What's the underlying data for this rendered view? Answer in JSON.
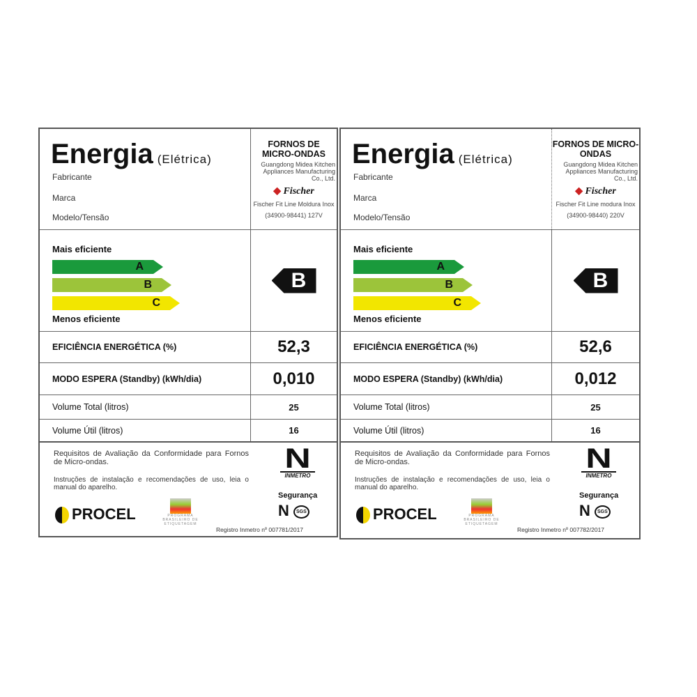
{
  "labels": [
    {
      "title": "Energia",
      "subtitle": "(Elétrica)",
      "fields": [
        "Fabricante",
        "Marca",
        "Modelo/Tensão"
      ],
      "category": "FORNOS DE MICRO-ONDAS",
      "manufacturer": "Guangdong Midea Kitchen Appliances Manufacturing Co., Ltd.",
      "brand": "Fischer",
      "model": "Fischer Fit Line Moldura Inox",
      "model_code": "(34900-98441) 127V",
      "most_efficient": "Mais eficiente",
      "least_efficient": "Menos eficiente",
      "classes": [
        "A",
        "B",
        "C"
      ],
      "rating": "B",
      "efficiency_label": "EFICIÊNCIA ENERGÉTICA (%)",
      "efficiency": "52,3",
      "standby_label": "MODO ESPERA (Standby) (kWh/dia)",
      "standby": "0,010",
      "volume_total_label": "Volume Total (litros)",
      "volume_total": "25",
      "volume_util_label": "Volume Útil (litros)",
      "volume_util": "16",
      "requirements": "Requisitos de Avaliação da Conformidade para Fornos de Micro-ondas.",
      "instructions": "Instruções de instalação e recomendações de uso, leia o manual do aparelho.",
      "procel": "PROCEL",
      "pbe": "PROGRAMA BRASILEIRO DE ETIQUETAGEM",
      "inmetro": "INMETRO",
      "safety": "Segurança",
      "sgs": "SGS",
      "registry": "Registro Inmetro nº 007781/2017"
    },
    {
      "title": "Energia",
      "subtitle": "(Elétrica)",
      "fields": [
        "Fabricante",
        "Marca",
        "Modelo/Tensão"
      ],
      "category": "FORNOS DE MICRO-ONDAS",
      "manufacturer": "Guangdong Midea Kitchen Appliances Manufacturing Co., Ltd.",
      "brand": "Fischer",
      "model": "Fischer Fit Line modura Inox",
      "model_code": "(34900-98440) 220V",
      "most_efficient": "Mais eficiente",
      "least_efficient": "Menos eficiente",
      "classes": [
        "A",
        "B",
        "C"
      ],
      "rating": "B",
      "efficiency_label": "EFICIÊNCIA ENERGÉTICA (%)",
      "efficiency": "52,6",
      "standby_label": "MODO ESPERA (Standby) (kWh/dia)",
      "standby": "0,012",
      "volume_total_label": "Volume Total (litros)",
      "volume_total": "25",
      "volume_util_label": "Volume Útil (litros)",
      "volume_util": "16",
      "requirements": "Requisitos de Avaliação da Conformidade para Fornos de Micro-ondas.",
      "instructions": "Instruções de instalação e recomendações de uso, leia o manual do aparelho.",
      "procel": "PROCEL",
      "pbe": "PROGRAMA BRASILEIRO DE ETIQUETAGEM",
      "inmetro": "INMETRO",
      "safety": "Segurança",
      "sgs": "SGS",
      "registry": "Registro Inmetro nº 007782/2017"
    }
  ],
  "colors": {
    "A": "#1a9a3c",
    "B": "#9cc43a",
    "C": "#f2e600"
  }
}
